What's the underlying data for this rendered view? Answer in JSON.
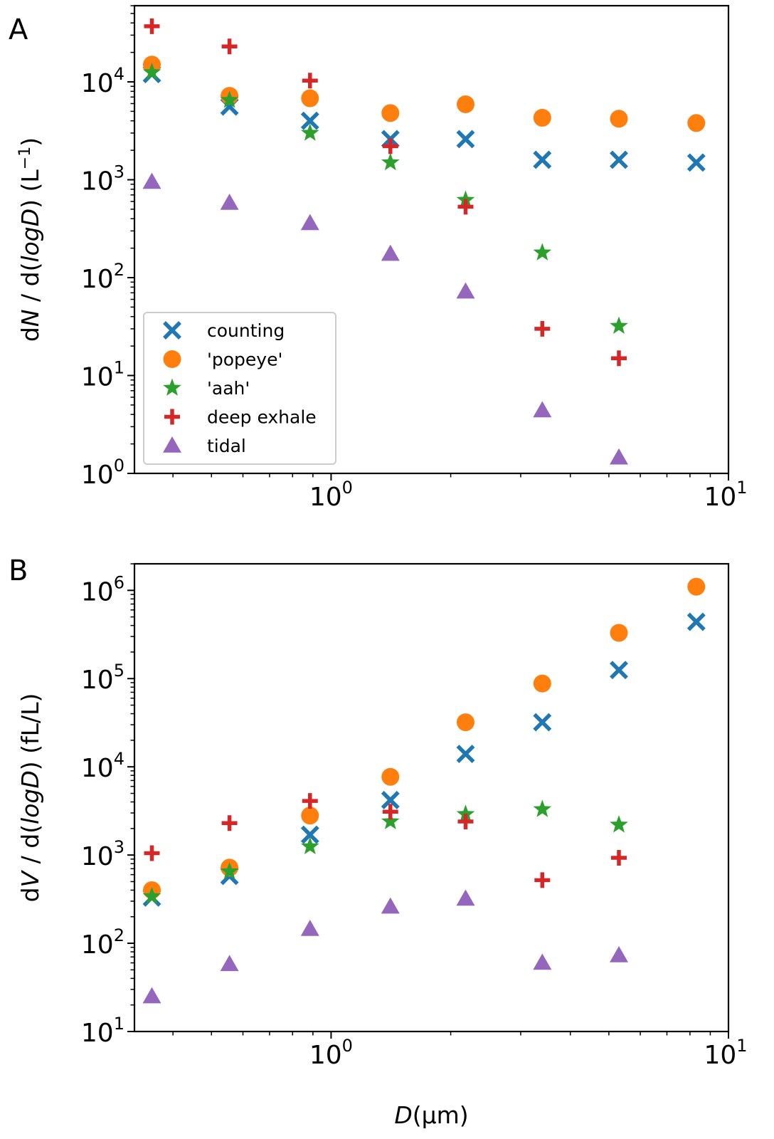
{
  "chart_data": [
    {
      "type": "scatter",
      "panel_label": "A",
      "xscale": "log",
      "yscale": "log",
      "xlim": [
        0.32,
        10
      ],
      "ylim": [
        1,
        60000
      ],
      "xlabel": "",
      "ylabel_parts": [
        "d",
        "N",
        " / d(",
        "logD",
        ") (L",
        "−1",
        ")"
      ],
      "x_ticks": [
        {
          "base": "10",
          "exp": "0",
          "value": 1
        },
        {
          "base": "10",
          "exp": "1",
          "value": 10
        }
      ],
      "y_ticks": [
        {
          "base": "10",
          "exp": "0",
          "value": 1
        },
        {
          "base": "10",
          "exp": "1",
          "value": 10
        },
        {
          "base": "10",
          "exp": "2",
          "value": 100
        },
        {
          "base": "10",
          "exp": "3",
          "value": 1000
        },
        {
          "base": "10",
          "exp": "4",
          "value": 10000
        }
      ],
      "legend": {
        "position": "lower-left",
        "entries": [
          "counting",
          "'popeye'",
          "'aah'",
          "deep exhale",
          "tidal"
        ]
      },
      "series": [
        {
          "name": "counting",
          "marker": "x",
          "color": "#1f77b4",
          "x": [
            0.354,
            0.555,
            0.885,
            1.41,
            2.18,
            3.4,
            5.3,
            8.3
          ],
          "y": [
            12000,
            5600,
            4000,
            2600,
            2600,
            1600,
            1600,
            1500
          ]
        },
        {
          "name": "'popeye'",
          "marker": "circle",
          "color": "#ff7f0e",
          "x": [
            0.354,
            0.555,
            0.885,
            1.41,
            2.18,
            3.4,
            5.3,
            8.3
          ],
          "y": [
            15000,
            7200,
            6800,
            4800,
            5900,
            4300,
            4200,
            3800
          ]
        },
        {
          "name": "'aah'",
          "marker": "star",
          "color": "#2ca02c",
          "x": [
            0.354,
            0.555,
            0.885,
            1.41,
            2.18,
            3.4,
            5.3
          ],
          "y": [
            12500,
            6500,
            3000,
            1500,
            620,
            180,
            32
          ]
        },
        {
          "name": "deep exhale",
          "marker": "plus",
          "color": "#d62728",
          "x": [
            0.354,
            0.555,
            0.885,
            1.41,
            2.18,
            3.4,
            5.3
          ],
          "y": [
            37000,
            23000,
            10300,
            2200,
            530,
            30,
            15
          ]
        },
        {
          "name": "tidal",
          "marker": "triangle",
          "color": "#9467bd",
          "x": [
            0.354,
            0.555,
            0.885,
            1.41,
            2.18,
            3.4,
            5.3
          ],
          "y": [
            950,
            580,
            360,
            175,
            72,
            4.4,
            1.45
          ]
        }
      ]
    },
    {
      "type": "scatter",
      "panel_label": "B",
      "xscale": "log",
      "yscale": "log",
      "xlim": [
        0.32,
        10
      ],
      "ylim": [
        10,
        2000000
      ],
      "xlabel_parts": [
        "D",
        "(μm)"
      ],
      "ylabel_parts": [
        "d",
        "V",
        " / d(",
        "logD",
        ") (fL/L)"
      ],
      "x_ticks": [
        {
          "base": "10",
          "exp": "0",
          "value": 1
        },
        {
          "base": "10",
          "exp": "1",
          "value": 10
        }
      ],
      "y_ticks": [
        {
          "base": "10",
          "exp": "1",
          "value": 10
        },
        {
          "base": "10",
          "exp": "2",
          "value": 100
        },
        {
          "base": "10",
          "exp": "3",
          "value": 1000
        },
        {
          "base": "10",
          "exp": "4",
          "value": 10000
        },
        {
          "base": "10",
          "exp": "5",
          "value": 100000
        },
        {
          "base": "10",
          "exp": "6",
          "value": 1000000
        }
      ],
      "series": [
        {
          "name": "counting",
          "marker": "x",
          "color": "#1f77b4",
          "x": [
            0.354,
            0.555,
            0.885,
            1.41,
            2.18,
            3.4,
            5.3,
            8.3
          ],
          "y": [
            330,
            580,
            1700,
            4200,
            14000,
            32000,
            125000,
            440000
          ]
        },
        {
          "name": "'popeye'",
          "marker": "circle",
          "color": "#ff7f0e",
          "x": [
            0.354,
            0.555,
            0.885,
            1.41,
            2.18,
            3.4,
            5.3,
            8.3
          ],
          "y": [
            400,
            720,
            2800,
            7700,
            32000,
            88000,
            330000,
            1100000
          ]
        },
        {
          "name": "'aah'",
          "marker": "star",
          "color": "#2ca02c",
          "x": [
            0.354,
            0.555,
            0.885,
            1.41,
            2.18,
            3.4,
            5.3
          ],
          "y": [
            340,
            650,
            1250,
            2400,
            2900,
            3300,
            2200
          ]
        },
        {
          "name": "deep exhale",
          "marker": "plus",
          "color": "#d62728",
          "x": [
            0.354,
            0.555,
            0.885,
            1.41,
            2.18,
            3.4,
            5.3
          ],
          "y": [
            1050,
            2300,
            4100,
            3100,
            2400,
            520,
            930
          ]
        },
        {
          "name": "tidal",
          "marker": "triangle",
          "color": "#9467bd",
          "x": [
            0.354,
            0.555,
            0.885,
            1.41,
            2.18,
            3.4,
            5.3
          ],
          "y": [
            25,
            58,
            145,
            260,
            320,
            60,
            73
          ]
        }
      ]
    }
  ]
}
